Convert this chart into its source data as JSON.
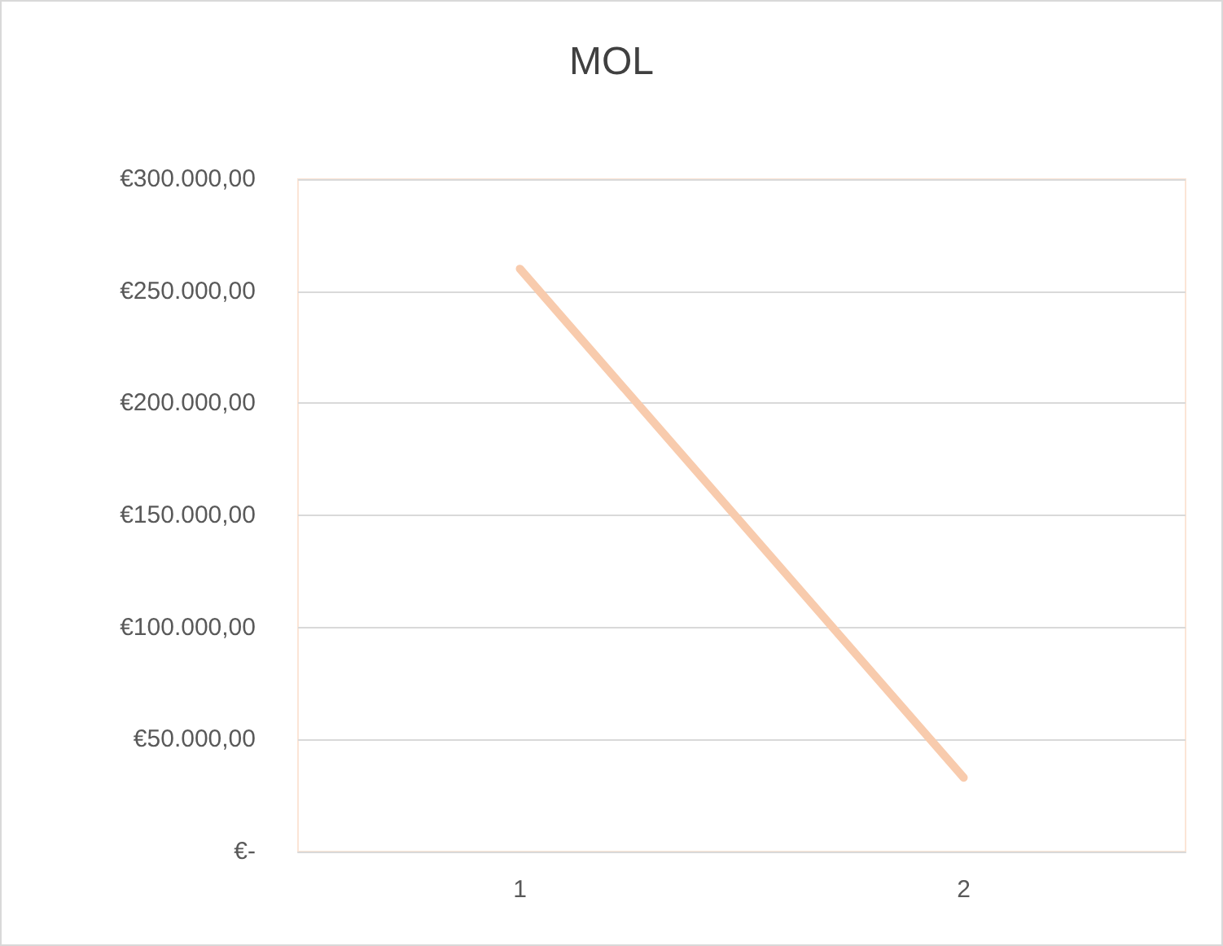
{
  "chart_data": {
    "type": "line",
    "title": "MOL",
    "categories": [
      "1",
      "2"
    ],
    "series": [
      {
        "color": "#f8cbad",
        "values": [
          260000,
          33000
        ]
      }
    ],
    "ylim": [
      0,
      300000
    ],
    "yticks": [
      {
        "value": 0,
        "label": "€-"
      },
      {
        "value": 50000,
        "label": "€50.000,00"
      },
      {
        "value": 100000,
        "label": "€100.000,00"
      },
      {
        "value": 150000,
        "label": "€150.000,00"
      },
      {
        "value": 200000,
        "label": "€200.000,00"
      },
      {
        "value": 250000,
        "label": "€250.000,00"
      },
      {
        "value": 300000,
        "label": "€300.000,00"
      }
    ],
    "grid": "y",
    "marker": "none",
    "line_style": "solid"
  }
}
